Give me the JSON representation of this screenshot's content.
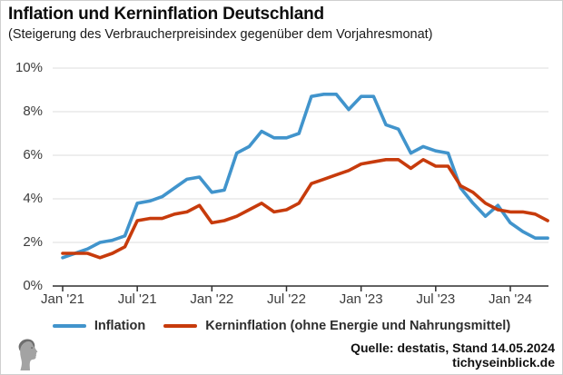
{
  "header": {
    "title": "Inflation und Kerninflation Deutschland",
    "subtitle": "(Steigerung des Verbraucherpreisindex gegenüber dem Vorjahresmonat)"
  },
  "legend": {
    "items": [
      {
        "label": "Inflation",
        "color": "#4194cc"
      },
      {
        "label": "Kerninflation (ohne Energie und Nahrungsmittel)",
        "color": "#c73b0c"
      }
    ]
  },
  "footer": {
    "source": "Quelle: destatis, Stand 14.05.2024",
    "site": "tichyseinblick.de",
    "logo": "tichys-einblick-classical-head-icon"
  },
  "chart_data": {
    "type": "line",
    "title": "Inflation und Kerninflation Deutschland",
    "subtitle": "(Steigerung des Verbraucherpreisindex gegenüber dem Vorjahresmonat)",
    "xlabel": "",
    "ylabel": "",
    "ylim": [
      0,
      10
    ],
    "grid": "horizontal",
    "legend_position": "bottom",
    "y_tick_labels": [
      "10%",
      "8%",
      "6%",
      "4%",
      "2%",
      "0%"
    ],
    "y_tick_values": [
      10,
      8,
      6,
      4,
      2,
      0
    ],
    "x_tick_labels": [
      "Jan '21",
      "Jul '21",
      "Jan '22",
      "Jul '22",
      "Jan '23",
      "Jul '23",
      "Jan '24"
    ],
    "x_tick_positions": [
      0,
      6,
      12,
      18,
      24,
      30,
      36
    ],
    "x": [
      "2021-01",
      "2021-02",
      "2021-03",
      "2021-04",
      "2021-05",
      "2021-06",
      "2021-07",
      "2021-08",
      "2021-09",
      "2021-10",
      "2021-11",
      "2021-12",
      "2022-01",
      "2022-02",
      "2022-03",
      "2022-04",
      "2022-05",
      "2022-06",
      "2022-07",
      "2022-08",
      "2022-09",
      "2022-10",
      "2022-11",
      "2022-12",
      "2023-01",
      "2023-02",
      "2023-03",
      "2023-04",
      "2023-05",
      "2023-06",
      "2023-07",
      "2023-08",
      "2023-09",
      "2023-10",
      "2023-11",
      "2023-12",
      "2024-01",
      "2024-02",
      "2024-03",
      "2024-04"
    ],
    "series": [
      {
        "name": "Inflation",
        "color": "#4194cc",
        "values": [
          1.3,
          1.5,
          1.7,
          2.0,
          2.1,
          2.3,
          3.8,
          3.9,
          4.1,
          4.5,
          4.9,
          5.0,
          4.3,
          4.4,
          6.1,
          6.4,
          7.1,
          6.8,
          6.8,
          7.0,
          8.7,
          8.8,
          8.8,
          8.1,
          8.7,
          8.7,
          7.4,
          7.2,
          6.1,
          6.4,
          6.2,
          6.1,
          4.5,
          3.8,
          3.2,
          3.7,
          2.9,
          2.5,
          2.2,
          2.2
        ]
      },
      {
        "name": "Kerninflation (ohne Energie und Nahrungsmittel)",
        "color": "#c73b0c",
        "values": [
          1.5,
          1.5,
          1.5,
          1.3,
          1.5,
          1.8,
          3.0,
          3.1,
          3.1,
          3.3,
          3.4,
          3.7,
          2.9,
          3.0,
          3.2,
          3.5,
          3.8,
          3.4,
          3.5,
          3.8,
          4.7,
          4.9,
          5.1,
          5.3,
          5.6,
          5.7,
          5.8,
          5.8,
          5.4,
          5.8,
          5.5,
          5.5,
          4.6,
          4.3,
          3.8,
          3.5,
          3.4,
          3.4,
          3.3,
          3.0
        ]
      }
    ]
  }
}
